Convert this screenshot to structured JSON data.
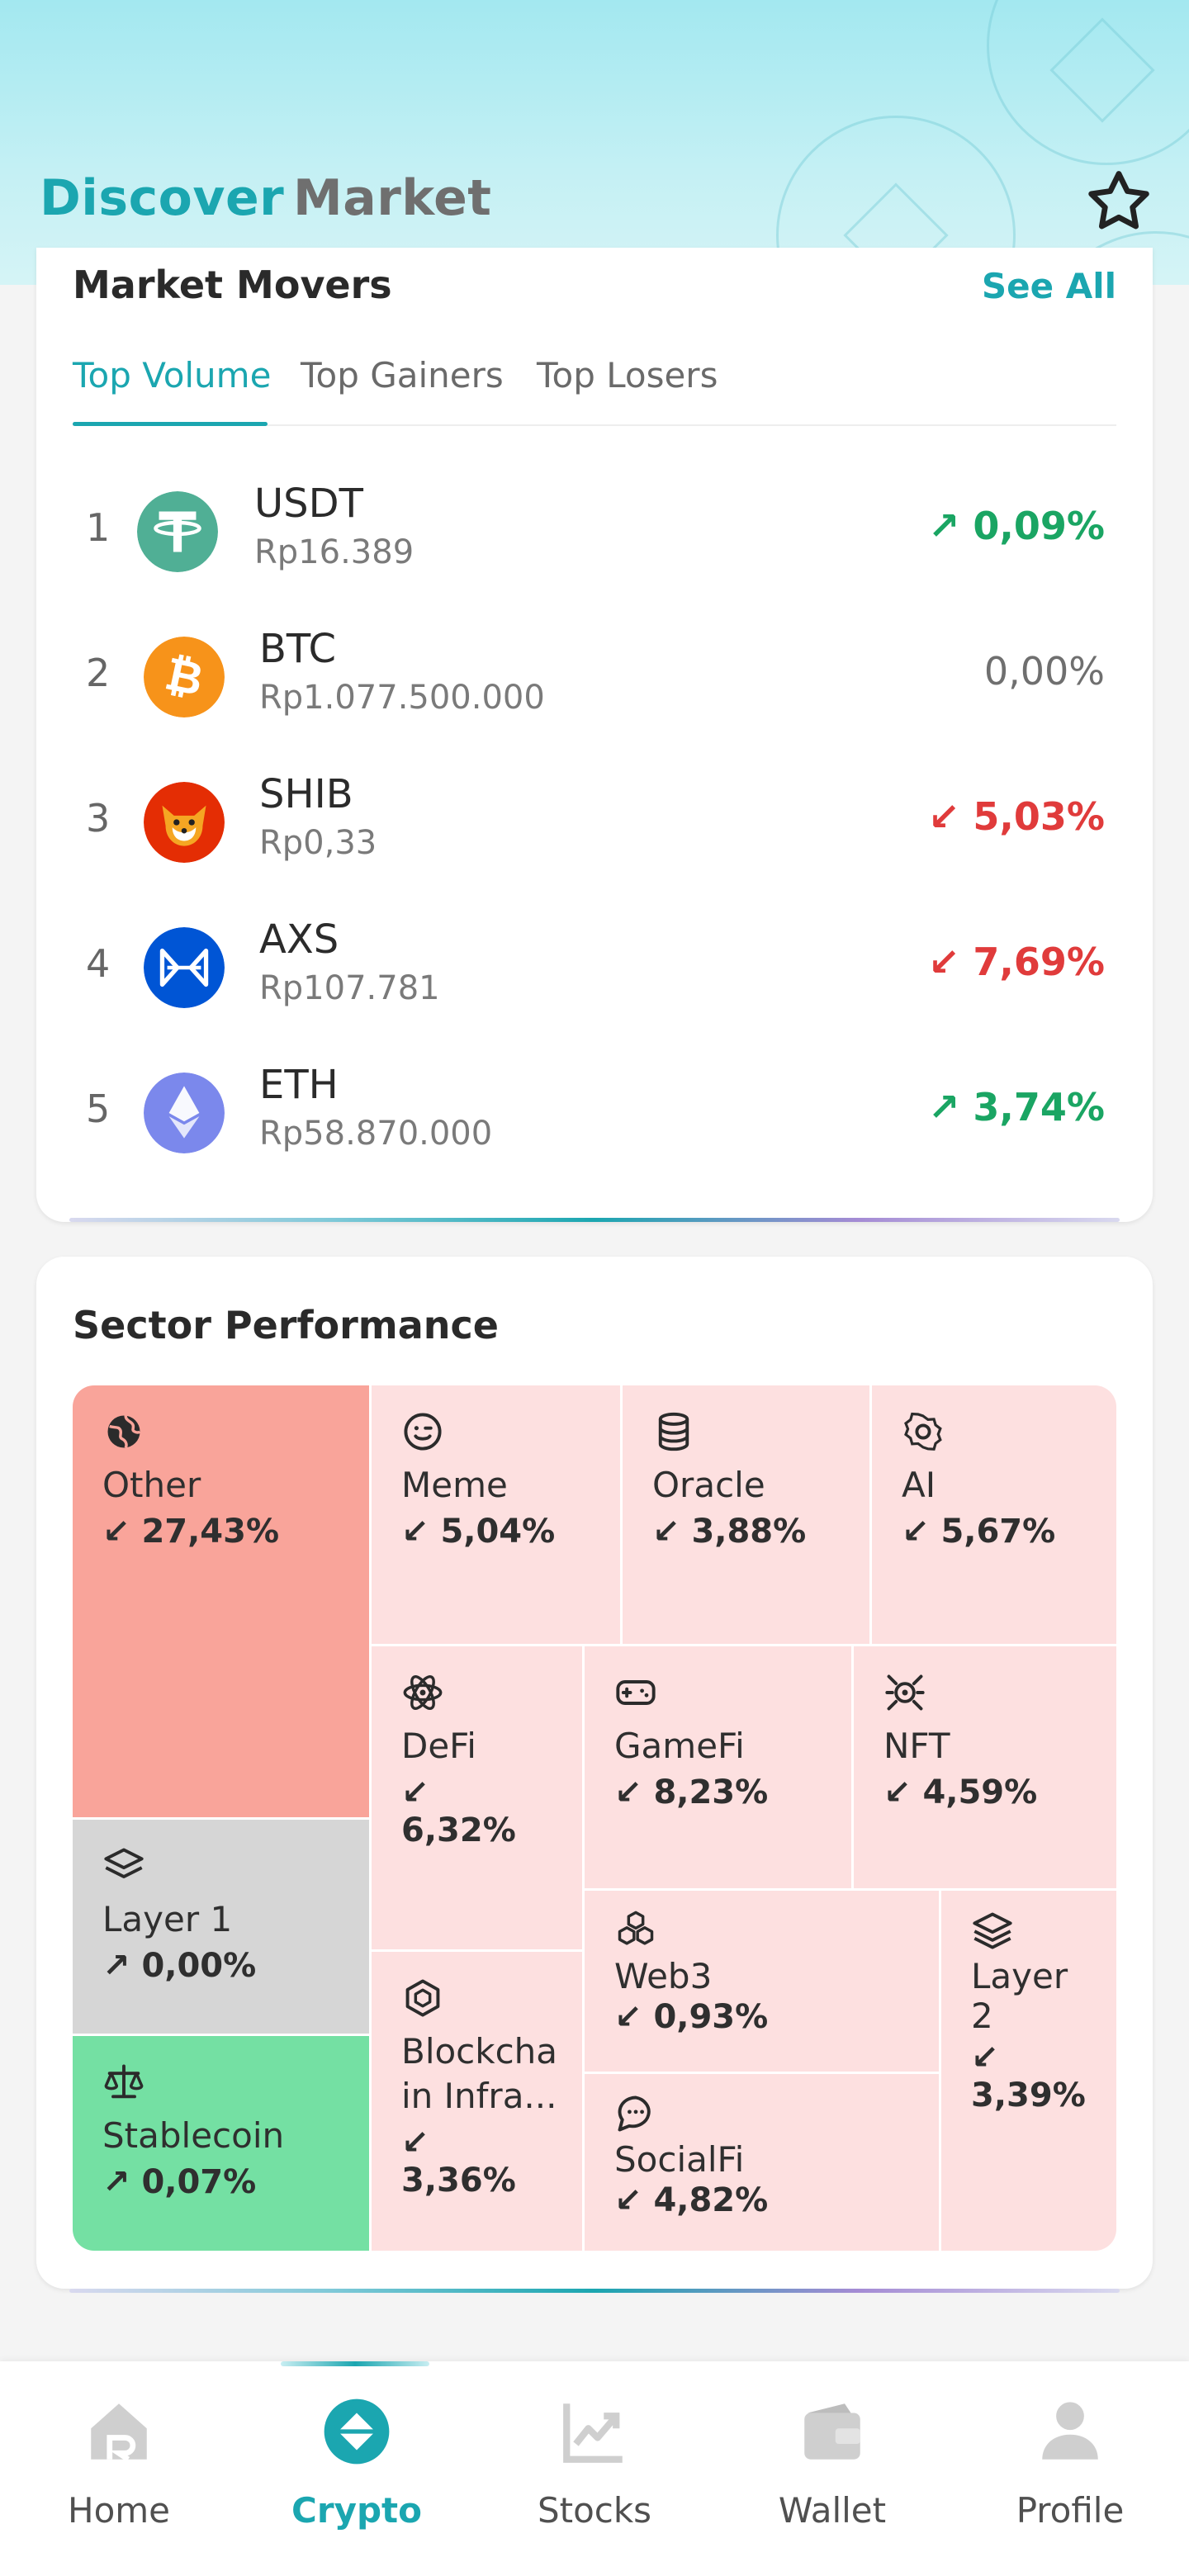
{
  "header": {
    "tabs": [
      {
        "label": "Discover",
        "active": true
      },
      {
        "label": "Market",
        "active": false
      }
    ],
    "favorite_icon": "star-outline-icon",
    "accent_color": "#1ba6b0"
  },
  "market_movers": {
    "title": "Market Movers",
    "see_all": "See All",
    "tabs": [
      {
        "label": "Top Volume",
        "active": true
      },
      {
        "label": "Top Gainers",
        "active": false
      },
      {
        "label": "Top Losers",
        "active": false
      }
    ],
    "rows": [
      {
        "rank": "1",
        "symbol": "USDT",
        "price": "Rp16.389",
        "change": "↗ 0,09%",
        "direction": "up"
      },
      {
        "rank": "2",
        "symbol": "BTC",
        "price": "Rp1.077.500.000",
        "change": "0,00%",
        "direction": "flat"
      },
      {
        "rank": "3",
        "symbol": "SHIB",
        "price": "Rp0,33",
        "change": "↙ 5,03%",
        "direction": "down"
      },
      {
        "rank": "4",
        "symbol": "AXS",
        "price": "Rp107.781",
        "change": "↙ 7,69%",
        "direction": "down"
      },
      {
        "rank": "5",
        "symbol": "ETH",
        "price": "Rp58.870.000",
        "change": "↗ 3,74%",
        "direction": "up"
      }
    ]
  },
  "sector_performance": {
    "title": "Sector Performance",
    "sectors": [
      {
        "name": "Other",
        "change": "↙ 27,43%",
        "icon": "globe-icon",
        "color": "#f9a49a"
      },
      {
        "name": "Meme",
        "change": "↙ 5,04%",
        "icon": "smiley-icon",
        "color": "#fde0e0"
      },
      {
        "name": "Oracle",
        "change": "↙ 3,88%",
        "icon": "database-icon",
        "color": "#fde0e0"
      },
      {
        "name": "AI",
        "change": "↙ 5,67%",
        "icon": "ai-chip-icon",
        "color": "#fde0e0"
      },
      {
        "name": "DeFi",
        "change": "↙ 6,32%",
        "icon": "atom-icon",
        "color": "#fde0e0"
      },
      {
        "name": "GameFi",
        "change": "↙ 8,23%",
        "icon": "gamepad-icon",
        "color": "#fde0e0"
      },
      {
        "name": "NFT",
        "change": "↙ 4,59%",
        "icon": "nft-icon",
        "color": "#fde0e0"
      },
      {
        "name": "Layer 1",
        "change": "↗ 0,00%",
        "icon": "layers-icon",
        "color": "#d6d6d6"
      },
      {
        "name": "Stablecoin",
        "change": "↗ 0,07%",
        "icon": "scale-icon",
        "color": "#74e0a3"
      },
      {
        "name": "Blockchain Infra...",
        "change": "↙ 3,36%",
        "icon": "cube-icon",
        "color": "#fde0e0"
      },
      {
        "name": "Web3",
        "change": "↙ 0,93%",
        "icon": "cubes-icon",
        "color": "#fde0e0"
      },
      {
        "name": "SocialFi",
        "change": "↙ 4,82%",
        "icon": "chat-icon",
        "color": "#fde0e0"
      },
      {
        "name": "Layer 2",
        "change": "↙ 3,39%",
        "icon": "layers-icon",
        "color": "#fde0e0"
      }
    ]
  },
  "bottom_nav": {
    "items": [
      {
        "label": "Home",
        "icon": "home-icon",
        "active": false
      },
      {
        "label": "Crypto",
        "icon": "crypto-icon",
        "active": true
      },
      {
        "label": "Stocks",
        "icon": "stocks-chart-icon",
        "active": false
      },
      {
        "label": "Wallet",
        "icon": "wallet-icon",
        "active": false
      },
      {
        "label": "Profile",
        "icon": "profile-icon",
        "active": false
      }
    ]
  }
}
